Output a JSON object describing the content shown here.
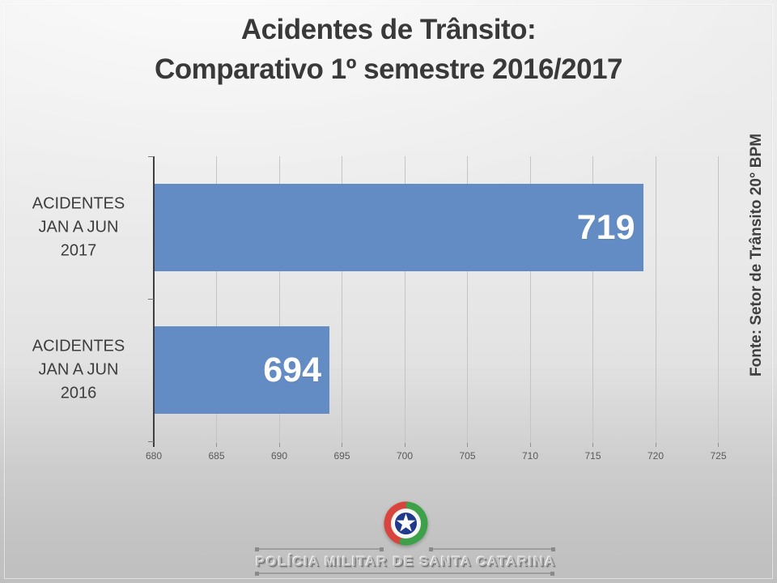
{
  "slide": {
    "footer": {
      "org_name": "POLÍCIA MILITAR DE SANTA CATARINA",
      "emblem_icon": "pmsc-star-emblem",
      "emblem_colors": {
        "red": "#D8453E",
        "green": "#3FA04A",
        "blue": "#20398C",
        "star": "#FFFFFF"
      }
    }
  },
  "chart_data": {
    "type": "bar",
    "orientation": "horizontal",
    "title": "Acidentes de Trânsito:\nComparativo 1º semestre 2016/2017",
    "source": "Fonte: Setor de Trânsito 20° BPM",
    "categories": [
      "ACIDENTES\nJAN A JUN\n2017",
      "ACIDENTES\nJAN A JUN\n2016"
    ],
    "values": [
      719,
      694
    ],
    "x_ticks": [
      680,
      685,
      690,
      695,
      700,
      705,
      710,
      715,
      720,
      725
    ],
    "xlim": [
      680,
      725
    ],
    "grid": true,
    "legend": false,
    "bar_color": "#638CC5",
    "value_label_color": "#FFFFFF",
    "xlabel": "",
    "ylabel": ""
  }
}
